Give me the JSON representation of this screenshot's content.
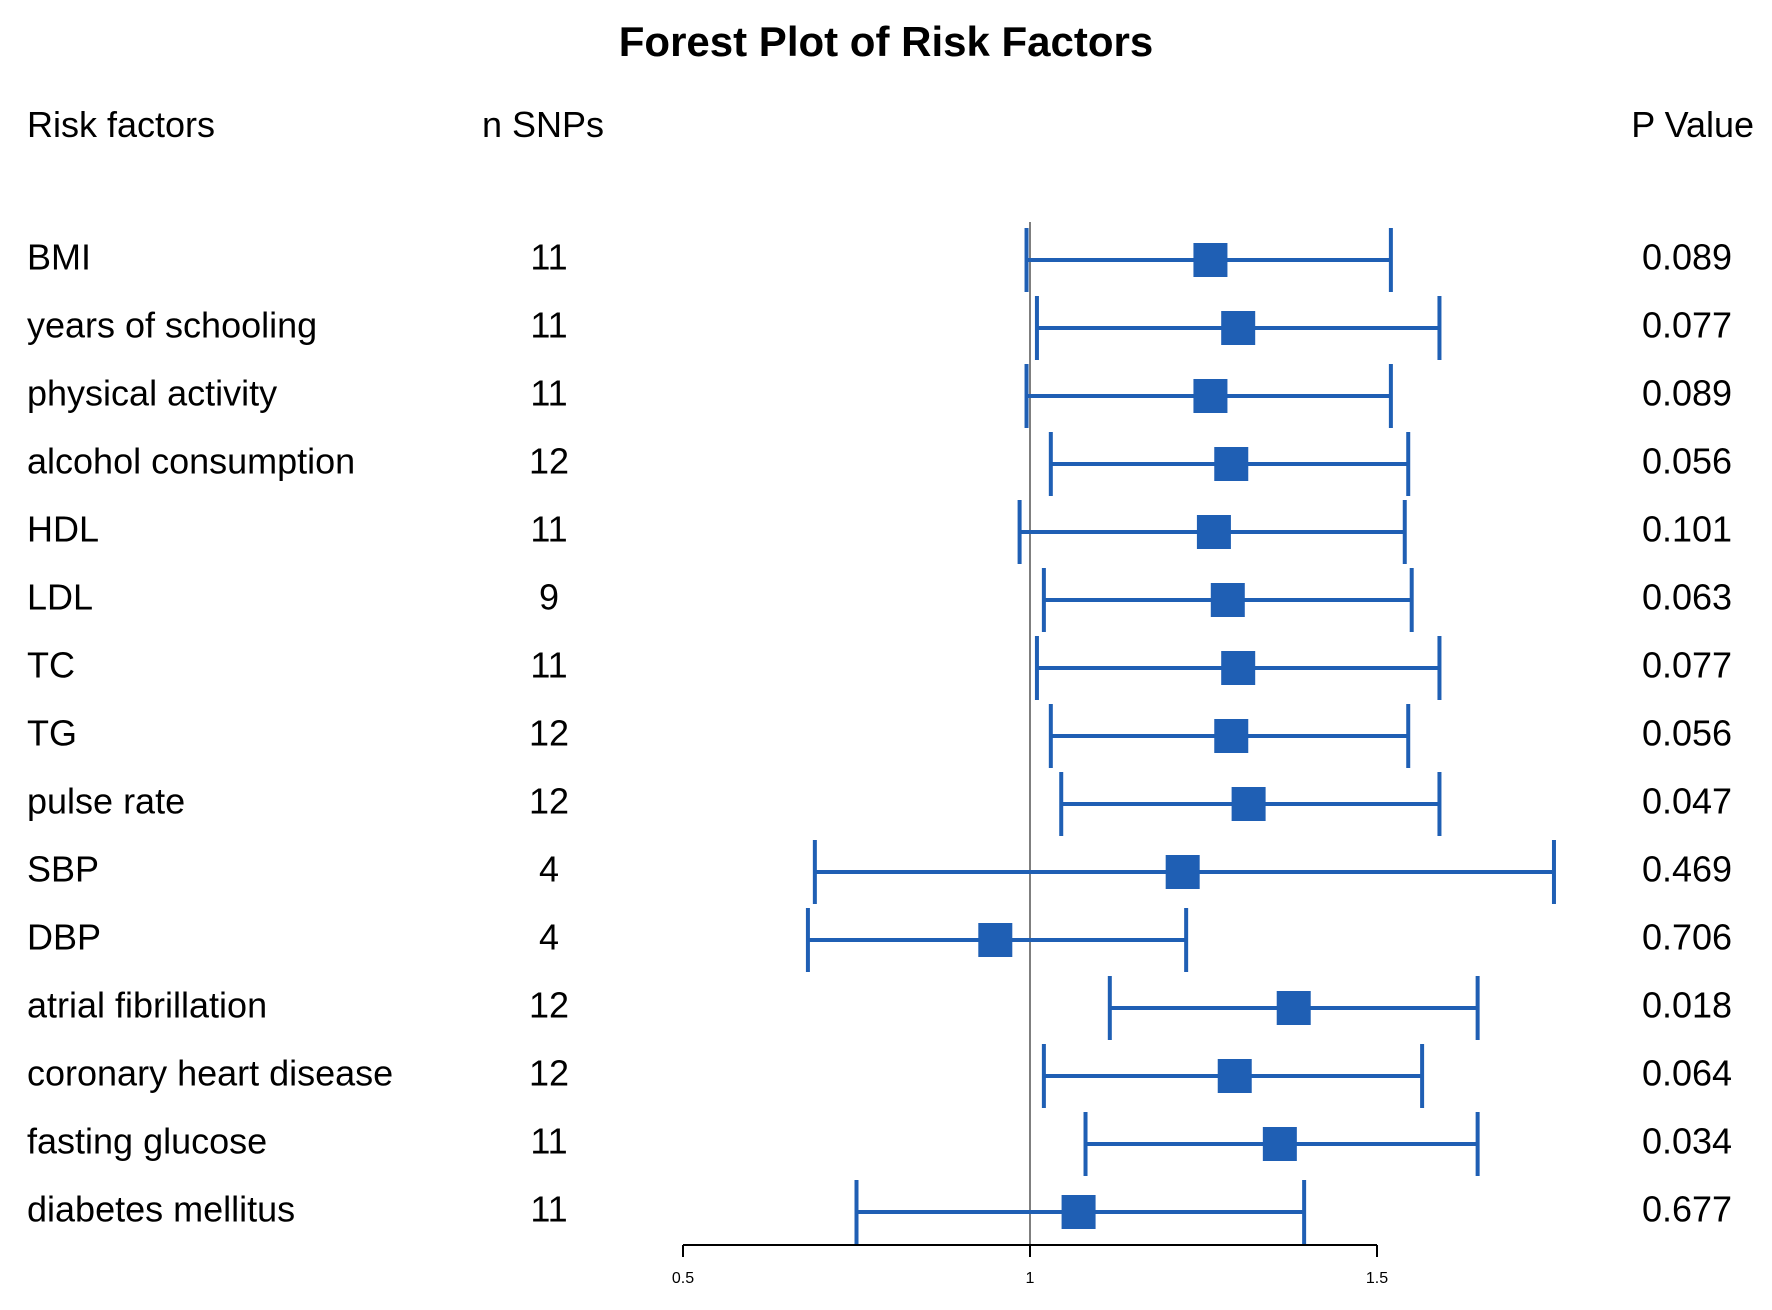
{
  "chart_data": {
    "type": "forest",
    "title": "Forest Plot of Risk Factors",
    "columns": {
      "factor_header": "Risk factors",
      "snps_header": "n SNPs",
      "p_header": "P Value"
    },
    "reference_line": 1,
    "xlim": [
      0.5,
      1.5
    ],
    "xticks": [
      "0.5",
      "1",
      "1.5"
    ],
    "accent_color": "#1f5fb4",
    "rows": [
      {
        "factor": "BMI",
        "n_snps": "11",
        "estimate": 1.26,
        "lower": 0.995,
        "upper": 1.52,
        "p": "0.089"
      },
      {
        "factor": "years of schooling",
        "n_snps": "11",
        "estimate": 1.3,
        "lower": 1.01,
        "upper": 1.59,
        "p": "0.077"
      },
      {
        "factor": "physical activity",
        "n_snps": "11",
        "estimate": 1.26,
        "lower": 0.995,
        "upper": 1.52,
        "p": "0.089"
      },
      {
        "factor": "alcohol consumption",
        "n_snps": "12",
        "estimate": 1.29,
        "lower": 1.03,
        "upper": 1.545,
        "p": "0.056"
      },
      {
        "factor": "HDL",
        "n_snps": "11",
        "estimate": 1.265,
        "lower": 0.985,
        "upper": 1.54,
        "p": "0.101"
      },
      {
        "factor": "LDL",
        "n_snps": "9",
        "estimate": 1.285,
        "lower": 1.02,
        "upper": 1.55,
        "p": "0.063"
      },
      {
        "factor": "TC",
        "n_snps": "11",
        "estimate": 1.3,
        "lower": 1.01,
        "upper": 1.59,
        "p": "0.077"
      },
      {
        "factor": "TG",
        "n_snps": "12",
        "estimate": 1.29,
        "lower": 1.03,
        "upper": 1.545,
        "p": "0.056"
      },
      {
        "factor": "pulse rate",
        "n_snps": "12",
        "estimate": 1.315,
        "lower": 1.045,
        "upper": 1.59,
        "p": "0.047"
      },
      {
        "factor": "SBP",
        "n_snps": "4",
        "estimate": 1.22,
        "lower": 0.69,
        "upper": 1.755,
        "p": "0.469"
      },
      {
        "factor": "DBP",
        "n_snps": "4",
        "estimate": 0.95,
        "lower": 0.68,
        "upper": 1.225,
        "p": "0.706"
      },
      {
        "factor": "atrial fibrillation",
        "n_snps": "12",
        "estimate": 1.38,
        "lower": 1.115,
        "upper": 1.645,
        "p": "0.018"
      },
      {
        "factor": "coronary heart disease",
        "n_snps": "12",
        "estimate": 1.295,
        "lower": 1.02,
        "upper": 1.565,
        "p": "0.064"
      },
      {
        "factor": "fasting glucose",
        "n_snps": "11",
        "estimate": 1.36,
        "lower": 1.08,
        "upper": 1.645,
        "p": "0.034"
      },
      {
        "factor": "diabetes mellitus",
        "n_snps": "11",
        "estimate": 1.07,
        "lower": 0.75,
        "upper": 1.395,
        "p": "0.677"
      }
    ]
  }
}
